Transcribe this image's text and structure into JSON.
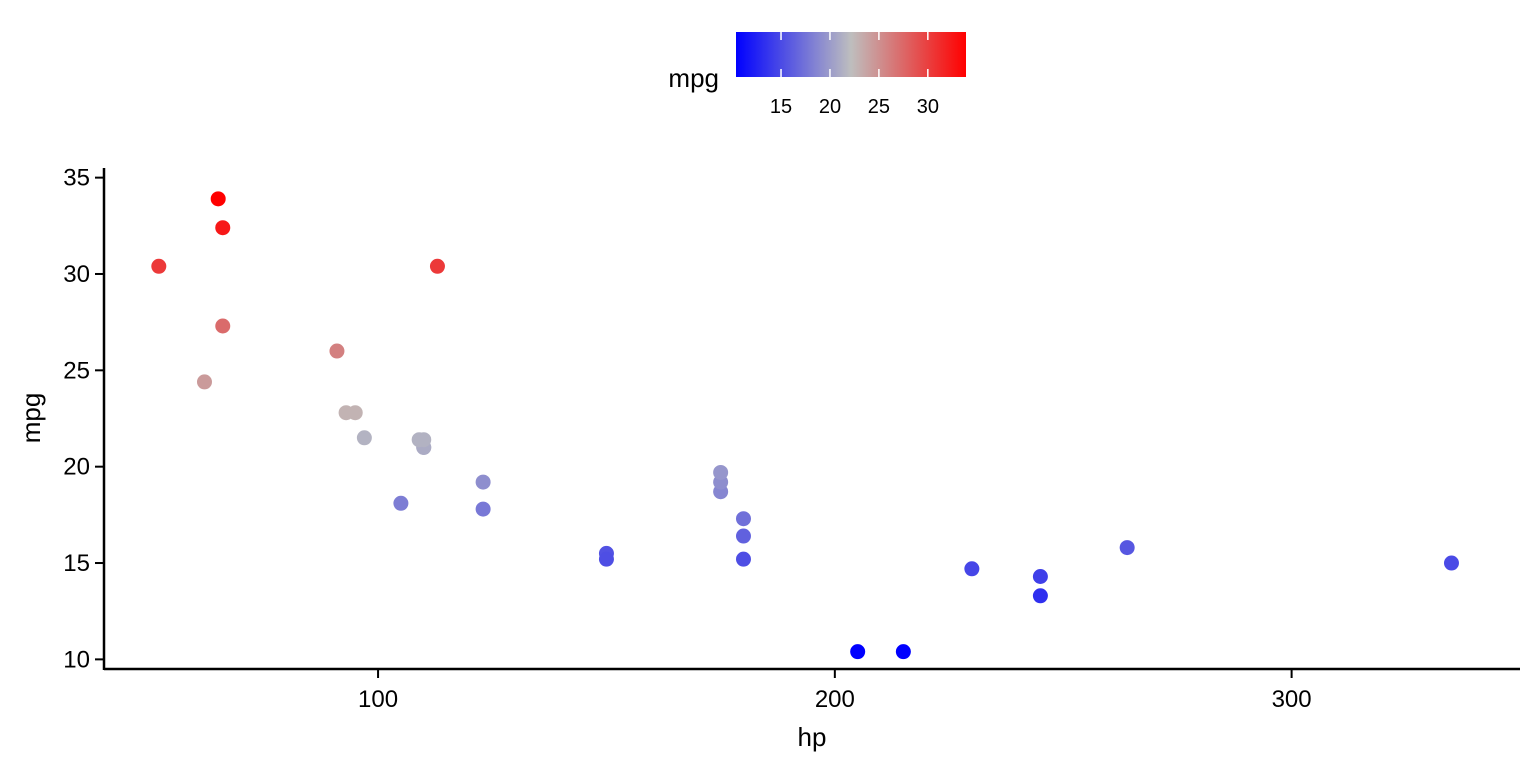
{
  "chart_data": {
    "type": "scatter",
    "xlabel": "hp",
    "ylabel": "mpg",
    "xlim": [
      40,
      350
    ],
    "ylim": [
      9.5,
      35.5
    ],
    "x_ticks": [
      100,
      200,
      300
    ],
    "y_ticks": [
      10,
      15,
      20,
      25,
      30,
      35
    ],
    "grid": false,
    "legend": {
      "title": "mpg",
      "placement": "top",
      "type": "colorbar",
      "range": [
        10.4,
        33.9
      ],
      "ticks": [
        15,
        20,
        25,
        30
      ],
      "low_color": "#0000ff",
      "mid_color": "#bebebe",
      "high_color": "#ff0000",
      "midpoint": 22.15
    },
    "points": [
      {
        "x": 110,
        "y": 21.0
      },
      {
        "x": 110,
        "y": 21.0
      },
      {
        "x": 93,
        "y": 22.8
      },
      {
        "x": 110,
        "y": 21.4
      },
      {
        "x": 175,
        "y": 18.7
      },
      {
        "x": 105,
        "y": 18.1
      },
      {
        "x": 245,
        "y": 14.3
      },
      {
        "x": 62,
        "y": 24.4
      },
      {
        "x": 95,
        "y": 22.8
      },
      {
        "x": 123,
        "y": 19.2
      },
      {
        "x": 123,
        "y": 17.8
      },
      {
        "x": 180,
        "y": 16.4
      },
      {
        "x": 180,
        "y": 17.3
      },
      {
        "x": 180,
        "y": 15.2
      },
      {
        "x": 205,
        "y": 10.4
      },
      {
        "x": 215,
        "y": 10.4
      },
      {
        "x": 230,
        "y": 14.7
      },
      {
        "x": 66,
        "y": 32.4
      },
      {
        "x": 52,
        "y": 30.4
      },
      {
        "x": 65,
        "y": 33.9
      },
      {
        "x": 97,
        "y": 21.5
      },
      {
        "x": 150,
        "y": 15.5
      },
      {
        "x": 150,
        "y": 15.2
      },
      {
        "x": 245,
        "y": 13.3
      },
      {
        "x": 175,
        "y": 19.2
      },
      {
        "x": 66,
        "y": 27.3
      },
      {
        "x": 91,
        "y": 26.0
      },
      {
        "x": 113,
        "y": 30.4
      },
      {
        "x": 264,
        "y": 15.8
      },
      {
        "x": 175,
        "y": 19.7
      },
      {
        "x": 335,
        "y": 15.0
      },
      {
        "x": 109,
        "y": 21.4
      }
    ]
  }
}
